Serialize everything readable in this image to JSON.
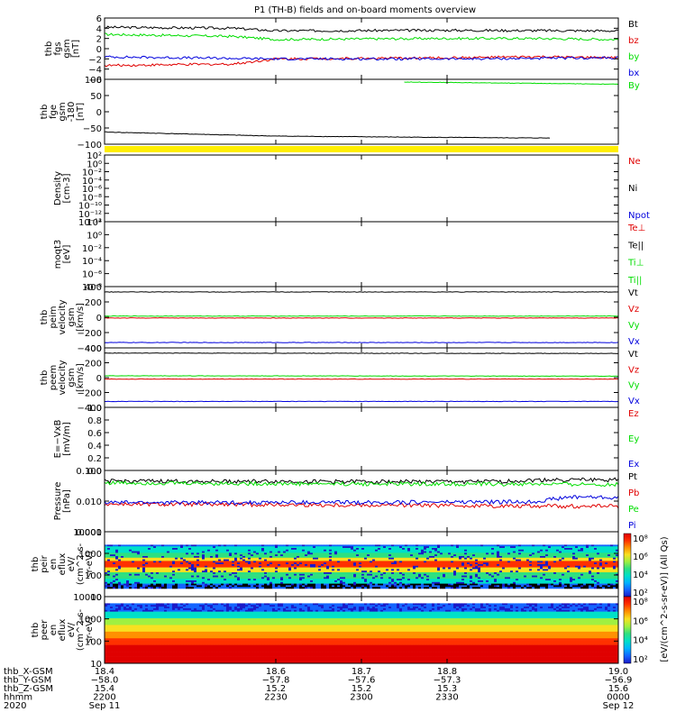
{
  "title": "P1  (TH-B) fields and on-board moments overview",
  "colors": {
    "black": "#000000",
    "red": "#e00000",
    "green": "#00dd00",
    "blue": "#0000dd",
    "yellow": "#ffee00"
  },
  "chart_data": [
    {
      "type": "line",
      "id": "p1",
      "ylabel": [
        "thb",
        "fgs",
        "gsm",
        "[nT]"
      ],
      "yticks": [
        "6",
        "4",
        "2",
        "0",
        "−2",
        "−4",
        "−6"
      ],
      "ylim": [
        -6,
        6
      ],
      "legend": [
        {
          "label": "Bt",
          "color": "black"
        },
        {
          "label": "bz",
          "color": "red"
        },
        {
          "label": "by",
          "color": "green"
        },
        {
          "label": "bx",
          "color": "blue"
        }
      ],
      "series": [
        {
          "name": "Bt",
          "color": "black",
          "x": [
            18.4,
            18.55,
            18.6,
            18.8,
            19.0
          ],
          "y": [
            4.2,
            4.0,
            3.5,
            3.6,
            3.5
          ]
        },
        {
          "name": "bz",
          "color": "red",
          "x": [
            18.4,
            18.55,
            18.6,
            18.8,
            18.9,
            19.0
          ],
          "y": [
            -3.3,
            -3.0,
            -2.0,
            -1.8,
            -1.6,
            -1.8
          ]
        },
        {
          "name": "by",
          "color": "green",
          "x": [
            18.4,
            18.55,
            18.6,
            18.8,
            18.9,
            19.0
          ],
          "y": [
            2.8,
            2.4,
            1.8,
            2.0,
            2.0,
            1.8
          ]
        },
        {
          "name": "bx",
          "color": "blue",
          "x": [
            18.4,
            18.6,
            18.8,
            18.9,
            19.0
          ],
          "y": [
            -1.6,
            -2.0,
            -2.0,
            -1.9,
            -1.8
          ]
        }
      ]
    },
    {
      "type": "line",
      "id": "p2",
      "ylabel": [
        "thb",
        "fge",
        "gsm",
        "-180",
        "[nT]"
      ],
      "yticks": [
        "100",
        "50",
        "0",
        "−50",
        "−100"
      ],
      "ylim": [
        -130,
        110
      ],
      "legend": [
        {
          "label": "By",
          "color": "green"
        }
      ],
      "series": [
        {
          "name": "By",
          "color": "green",
          "x": [
            18.75,
            19.0
          ],
          "y": [
            100,
            92
          ]
        },
        {
          "name": "",
          "color": "black",
          "x": [
            18.4,
            18.6,
            18.8,
            18.9
          ],
          "y": [
            -85,
            -100,
            -105,
            -107
          ]
        }
      ]
    },
    {
      "type": "line",
      "id": "p3",
      "ylabel": [
        "Density",
        "[cm-3]"
      ],
      "yticks": [
        "10²",
        "10⁰",
        "10⁻²",
        "10⁻⁴",
        "10⁻⁶",
        "10⁻⁸",
        "10⁻¹⁰",
        "10⁻¹²",
        "10⁻¹⁴"
      ],
      "ylim": [
        -14,
        2
      ],
      "log": true,
      "legend": [
        {
          "label": "Ne",
          "color": "red"
        },
        {
          "label": "Ni",
          "color": "black"
        },
        {
          "label": "Npot",
          "color": "blue"
        }
      ],
      "series": [
        {
          "name": "Ni",
          "color": "black",
          "x": [
            18.4,
            19.0
          ],
          "y": [
            0,
            0
          ]
        }
      ]
    },
    {
      "type": "line",
      "id": "p4",
      "ylabel": [
        "moqt3",
        "[eV]"
      ],
      "yticks": [
        "10²",
        "10⁰",
        "10⁻²",
        "10⁻⁴",
        "10⁻⁶",
        "10⁻⁸"
      ],
      "ylim": [
        -9,
        2
      ],
      "log": true,
      "legend": [
        {
          "label": "Te⊥",
          "color": "red"
        },
        {
          "label": "Te||",
          "color": "black"
        },
        {
          "label": "Ti⊥",
          "color": "green"
        },
        {
          "label": "Ti||",
          "color": "green"
        }
      ],
      "series": [
        {
          "name": "Te",
          "color": "red",
          "x": [
            18.4,
            19.0
          ],
          "y": [
            0,
            0
          ]
        }
      ]
    },
    {
      "type": "line",
      "id": "p5",
      "ylabel": [
        "thb",
        "peim",
        "velocity",
        "gsm",
        "[km/s]"
      ],
      "yticks": [
        "400",
        "200",
        "0",
        "−200",
        "−400"
      ],
      "ylim": [
        -400,
        400
      ],
      "legend": [
        {
          "label": "Vt",
          "color": "black"
        },
        {
          "label": "Vz",
          "color": "red"
        },
        {
          "label": "Vy",
          "color": "green"
        },
        {
          "label": "Vx",
          "color": "blue"
        }
      ],
      "series": [
        {
          "name": "Vt",
          "color": "black",
          "x": [
            18.4,
            19.0
          ],
          "y": [
            330,
            330
          ]
        },
        {
          "name": "Vz",
          "color": "red",
          "x": [
            18.4,
            19.0
          ],
          "y": [
            -10,
            -10
          ]
        },
        {
          "name": "Vy",
          "color": "green",
          "x": [
            18.4,
            19.0
          ],
          "y": [
            15,
            15
          ]
        },
        {
          "name": "Vx",
          "color": "blue",
          "x": [
            18.4,
            19.0
          ],
          "y": [
            -330,
            -330
          ]
        }
      ]
    },
    {
      "type": "line",
      "id": "p6",
      "ylabel": [
        "thb",
        "peem",
        "velocity",
        "gsm",
        "[km/s]"
      ],
      "yticks": [
        "400",
        "200",
        "0",
        "−200",
        "−400"
      ],
      "ylim": [
        -400,
        400
      ],
      "legend": [
        {
          "label": "Vt",
          "color": "black"
        },
        {
          "label": "Vz",
          "color": "red"
        },
        {
          "label": "Vy",
          "color": "green"
        },
        {
          "label": "Vx",
          "color": "blue"
        }
      ],
      "series": [
        {
          "name": "Vt",
          "color": "black",
          "x": [
            18.4,
            19.0
          ],
          "y": [
            330,
            325
          ]
        },
        {
          "name": "Vz",
          "color": "red",
          "x": [
            18.4,
            19.0
          ],
          "y": [
            -20,
            -20
          ]
        },
        {
          "name": "Vy",
          "color": "green",
          "x": [
            18.4,
            19.0
          ],
          "y": [
            25,
            20
          ]
        },
        {
          "name": "Vx",
          "color": "blue",
          "x": [
            18.4,
            19.0
          ],
          "y": [
            -320,
            -320
          ]
        }
      ]
    },
    {
      "type": "line",
      "id": "p7",
      "ylabel": [
        "E=−VxB",
        "[mV/m]"
      ],
      "yticks": [
        "1.0",
        "0.8",
        "0.6",
        "0.4",
        "0.2",
        "0.0"
      ],
      "ylim": [
        0,
        1
      ],
      "legend": [
        {
          "label": "Ez",
          "color": "red"
        },
        {
          "label": "Ey",
          "color": "green"
        },
        {
          "label": "Ex",
          "color": "blue"
        }
      ],
      "series": []
    },
    {
      "type": "line",
      "id": "p8",
      "ylabel": [
        "Pressure",
        "[nPa]"
      ],
      "yticks": [
        "0.100",
        "0.010",
        "0.001"
      ],
      "ylim": [
        -3,
        -1
      ],
      "log": true,
      "legend": [
        {
          "label": "Pt",
          "color": "black"
        },
        {
          "label": "Pb",
          "color": "red"
        },
        {
          "label": "Pe",
          "color": "green"
        },
        {
          "label": "Pi",
          "color": "blue"
        }
      ],
      "series": [
        {
          "name": "Pt",
          "color": "black",
          "x": [
            18.4,
            18.85,
            18.92,
            19.0
          ],
          "y": [
            0.045,
            0.043,
            0.05,
            0.05
          ]
        },
        {
          "name": "Pb",
          "color": "red",
          "x": [
            18.4,
            18.9,
            19.0
          ],
          "y": [
            0.008,
            0.007,
            0.0068
          ]
        },
        {
          "name": "Pe",
          "color": "green",
          "x": [
            18.4,
            18.6,
            18.9,
            19.0
          ],
          "y": [
            0.04,
            0.037,
            0.036,
            0.035
          ]
        },
        {
          "name": "Pi",
          "color": "blue",
          "x": [
            18.4,
            18.6,
            18.9,
            18.95,
            19.0
          ],
          "y": [
            0.009,
            0.009,
            0.0095,
            0.014,
            0.013
          ]
        }
      ]
    },
    {
      "type": "heatmap",
      "id": "p9",
      "ylabel": [
        "thb",
        "peir",
        "en",
        "eflux",
        "eV/",
        "(cm^2-s-",
        "sr-eV)"
      ],
      "yticks": [
        "10000",
        "1000",
        "100",
        "10"
      ],
      "ylim": [
        1,
        4
      ]
    },
    {
      "type": "heatmap",
      "id": "p10",
      "ylabel": [
        "thb",
        "peer",
        "en",
        "eflux",
        "eV/",
        "(cm^2-s-",
        "sr-eV)"
      ],
      "yticks": [
        "10000",
        "1000",
        "100",
        "10"
      ],
      "ylim": [
        0.7,
        4.2
      ]
    }
  ],
  "colorbar": {
    "label": "[eV/(cm^2-s-sr-eV)] (All Qs)",
    "ticks_top": [
      "10⁸",
      "10⁶",
      "10⁴",
      "10²"
    ],
    "ticks_bottom": [
      "10⁸",
      "10⁶",
      "10⁴",
      "10²"
    ]
  },
  "xaxis": {
    "ticks": [
      18.4,
      18.6,
      18.7,
      18.8,
      19.0
    ],
    "rows": [
      {
        "name": "thb_X-GSM",
        "values": [
          "18.4",
          "18.6",
          "18.7",
          "18.8",
          "19.0"
        ]
      },
      {
        "name": "thb_Y-GSM",
        "values": [
          "−58.0",
          "−57.8",
          "−57.6",
          "−57.3",
          "−56.9"
        ]
      },
      {
        "name": "thb_Z-GSM",
        "values": [
          "15.4",
          "15.2",
          "15.2",
          "15.3",
          "15.6"
        ]
      },
      {
        "name": "hhmm",
        "values": [
          "2200",
          "2230",
          "2300",
          "2330",
          "0000"
        ]
      },
      {
        "name": "2020",
        "values": [
          "Sep 11",
          "",
          "",
          "",
          "Sep 12"
        ]
      }
    ]
  }
}
